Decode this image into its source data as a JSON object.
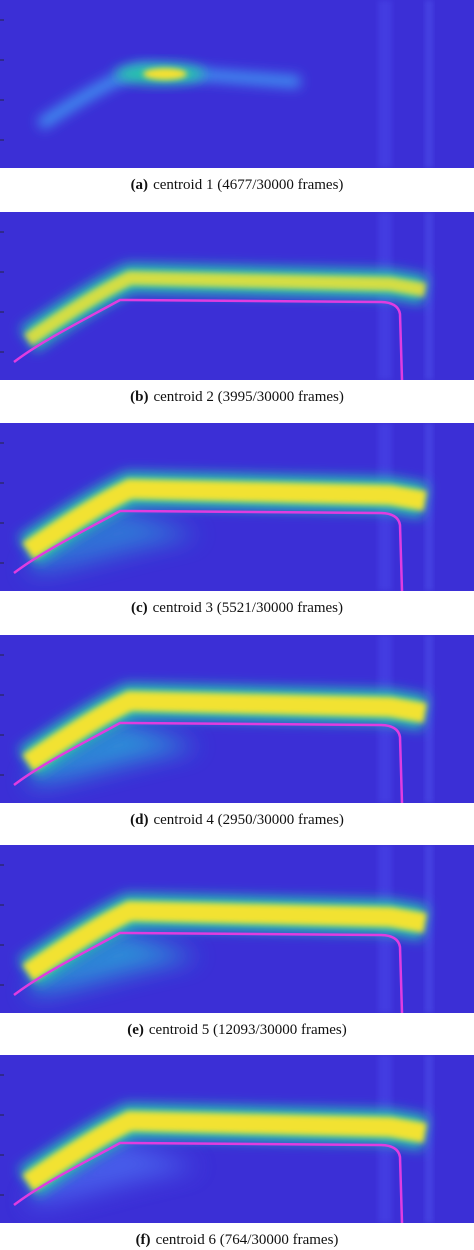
{
  "panels": [
    {
      "label": "(a)",
      "caption": "centroid 1 (4677/30000 frames)"
    },
    {
      "label": "(b)",
      "caption": "centroid 2 (3995/30000 frames)"
    },
    {
      "label": "(c)",
      "caption": "centroid 3 (5521/30000 frames)"
    },
    {
      "label": "(d)",
      "caption": "centroid 4 (2950/30000 frames)"
    },
    {
      "label": "(e)",
      "caption": "centroid 5 (12093/30000 frames)"
    },
    {
      "label": "(f)",
      "caption": "centroid 6 (764/30000 frames)"
    }
  ]
}
